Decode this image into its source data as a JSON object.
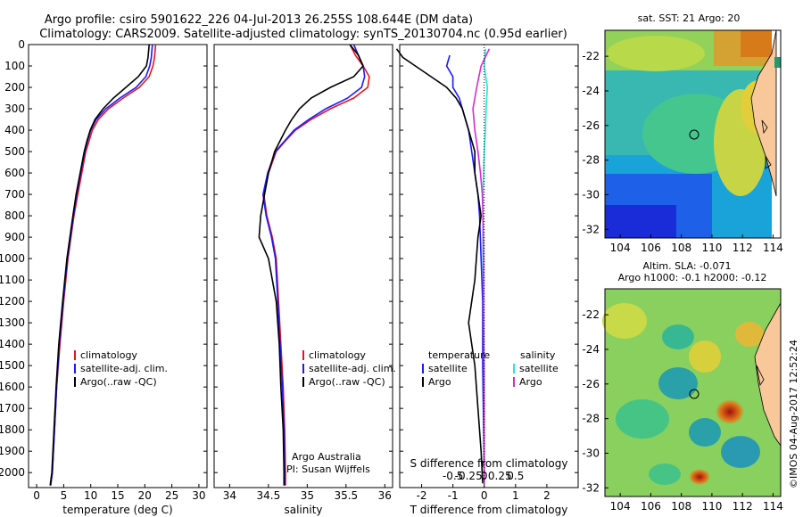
{
  "header": {
    "title_line1": "Argo profile: csiro 5901622_226 04-Jul-2013 26.255S 108.644E (DM data)",
    "title_line2": "Climatology: CARS2009. Satellite-adjusted climatology: synTS_20130704.nc (0.95d earlier)"
  },
  "depth_axis": {
    "ticks": [
      0,
      100,
      200,
      300,
      400,
      500,
      600,
      700,
      800,
      900,
      1000,
      1100,
      1200,
      1300,
      1400,
      1500,
      1600,
      1700,
      1800,
      1900,
      2000
    ],
    "min": 0,
    "max": 2070
  },
  "colors": {
    "climatology": "#e8141c",
    "satellite": "#1a1aff",
    "argo": "#000000",
    "sat_salinity": "#22e5e5",
    "argo_salinity": "#d62ad6"
  },
  "chart_data": [
    {
      "type": "line",
      "xlabel": "temperature (deg C)",
      "xticks": [
        0,
        5,
        10,
        15,
        20,
        25,
        30
      ],
      "xlim": [
        -1.5,
        31.5
      ],
      "ylim": [
        2070,
        0
      ],
      "legend": [
        "climatology",
        "satellite-adj. clim.",
        "Argo(..raw -QC)"
      ],
      "series": [
        {
          "name": "climatology",
          "x": [
            22,
            21.8,
            21.5,
            20.8,
            19,
            16,
            13.3,
            11.4,
            10.3,
            9.7,
            9.1,
            7.6,
            6.9,
            5.8,
            5,
            4.3,
            3.7,
            3.3,
            2.9,
            2.6
          ],
          "y": [
            0,
            60,
            100,
            150,
            200,
            250,
            300,
            350,
            400,
            450,
            500,
            700,
            800,
            1000,
            1200,
            1400,
            1600,
            1800,
            2000,
            2060
          ]
        },
        {
          "name": "satellite-adj. clim.",
          "x": [
            21.4,
            21.2,
            20.9,
            20.2,
            18.4,
            15.4,
            12.8,
            11,
            10,
            9.4,
            8.9,
            7.4,
            6.8,
            5.7,
            4.9,
            4.2,
            3.7,
            3.3,
            2.9,
            2.6
          ],
          "y": [
            0,
            60,
            100,
            150,
            200,
            250,
            300,
            350,
            400,
            450,
            500,
            700,
            800,
            1000,
            1200,
            1400,
            1600,
            1800,
            2000,
            2060
          ]
        },
        {
          "name": "Argo(..raw -QC)",
          "x": [
            20.8,
            20.6,
            20.3,
            18.8,
            16.5,
            14.2,
            12.3,
            10.8,
            9.9,
            9.3,
            8.8,
            7.3,
            6.7,
            5.6,
            4.8,
            4.1,
            3.6,
            3.2,
            2.8,
            2.5
          ],
          "y": [
            0,
            60,
            100,
            150,
            200,
            250,
            300,
            350,
            400,
            450,
            500,
            700,
            800,
            1000,
            1200,
            1400,
            1600,
            1800,
            2000,
            2060
          ]
        }
      ],
      "annotations": []
    },
    {
      "type": "line",
      "xlabel": "salinity",
      "xticks": [
        34,
        34.5,
        35,
        35.5,
        36
      ],
      "xlim": [
        33.8,
        36.1
      ],
      "ylim": [
        2070,
        0
      ],
      "legend": [
        "climatology",
        "satellite-adj. clim.",
        "Argo(..raw -QC)"
      ],
      "series": [
        {
          "name": "climatology",
          "x": [
            35.55,
            35.62,
            35.72,
            35.8,
            35.78,
            35.6,
            35.3,
            35.05,
            34.85,
            34.72,
            34.6,
            34.5,
            34.44,
            34.48,
            34.55,
            34.6,
            34.63,
            34.66,
            34.69,
            34.71,
            34.72,
            34.72
          ],
          "y": [
            0,
            50,
            100,
            150,
            200,
            250,
            300,
            350,
            400,
            450,
            500,
            600,
            700,
            800,
            900,
            1000,
            1200,
            1400,
            1600,
            1800,
            2000,
            2060
          ]
        },
        {
          "name": "satellite-adj. clim.",
          "x": [
            35.6,
            35.66,
            35.72,
            35.74,
            35.7,
            35.52,
            35.24,
            35.02,
            34.83,
            34.71,
            34.59,
            34.49,
            34.43,
            34.47,
            34.54,
            34.59,
            34.62,
            34.65,
            34.68,
            34.7,
            34.71,
            34.71
          ],
          "y": [
            0,
            50,
            100,
            150,
            200,
            250,
            300,
            350,
            400,
            450,
            500,
            600,
            700,
            800,
            900,
            1000,
            1200,
            1400,
            1600,
            1800,
            2000,
            2060
          ]
        },
        {
          "name": "Argo(..raw -QC)",
          "x": [
            35.55,
            35.66,
            35.72,
            35.6,
            35.3,
            35.05,
            34.9,
            34.8,
            34.72,
            34.65,
            34.58,
            34.5,
            34.45,
            34.4,
            34.38,
            34.5,
            34.6,
            34.64,
            34.66,
            34.69,
            34.7,
            34.7
          ],
          "y": [
            0,
            50,
            100,
            150,
            200,
            250,
            300,
            350,
            400,
            450,
            500,
            600,
            700,
            800,
            900,
            1000,
            1200,
            1400,
            1600,
            1800,
            2000,
            2060
          ]
        }
      ],
      "annotations": [
        "Argo Australia",
        "PI: Susan Wijffels"
      ]
    },
    {
      "type": "line",
      "xlabel": "T difference from climatology",
      "xlabel_top": "S difference from climatology",
      "xticks": [
        -2,
        -1,
        0,
        1,
        2
      ],
      "xtick_labels": [
        "-2",
        "-1",
        "0",
        "1",
        "2"
      ],
      "xticks_top": [
        -0.5,
        -0.25,
        0,
        0.25,
        0.5
      ],
      "xtick_labels_top": [
        "-0.5",
        "-0.25",
        "0",
        "0.25",
        "0.5"
      ],
      "xlim": [
        -2.7,
        3.0
      ],
      "ylim": [
        2070,
        0
      ],
      "legend_groups": [
        {
          "title": "temperature",
          "items": [
            "satellite",
            "Argo"
          ]
        },
        {
          "title": "salinity",
          "items": [
            "satellite",
            "Argo"
          ]
        }
      ],
      "series": [
        {
          "name": "temperature satellite",
          "unit": "T",
          "x": [
            -1.1,
            -1.2,
            -1.0,
            -1.0,
            -0.8,
            -0.7,
            -0.5,
            -0.4,
            -0.3,
            -0.2,
            -0.15,
            -0.1,
            -0.05,
            -0.05,
            0
          ],
          "y": [
            50,
            100,
            150,
            200,
            250,
            300,
            400,
            500,
            600,
            700,
            800,
            1000,
            1200,
            1500,
            2000
          ]
        },
        {
          "name": "temperature Argo",
          "x": [
            -2.8,
            -2.6,
            -2.2,
            -1.7,
            -1.2,
            -0.9,
            -0.7,
            -0.5,
            -0.3,
            -0.3,
            -0.2,
            -0.1,
            -0.2,
            -0.3,
            -0.5,
            -0.3,
            -0.2,
            -0.1,
            -0.05
          ],
          "y": [
            20,
            60,
            100,
            150,
            200,
            250,
            300,
            400,
            500,
            600,
            700,
            800,
            900,
            1100,
            1300,
            1500,
            1700,
            1900,
            2050
          ],
          "unit": "T"
        },
        {
          "name": "salinity satellite",
          "x": [
            0.02,
            0.0,
            0.05,
            0.03,
            0.02,
            0.0,
            -0.01,
            -0.02,
            -0.02,
            -0.02,
            -0.01,
            0,
            0,
            0
          ],
          "y": [
            20,
            100,
            200,
            300,
            400,
            500,
            600,
            700,
            800,
            1000,
            1200,
            1500,
            1800,
            2050
          ],
          "unit": "S"
        },
        {
          "name": "salinity Argo",
          "x": [
            0.08,
            -0.05,
            -0.12,
            -0.18,
            -0.15,
            -0.1,
            -0.06,
            -0.03,
            -0.02,
            -0.01,
            -0.01,
            0,
            0
          ],
          "y": [
            20,
            100,
            200,
            300,
            400,
            500,
            600,
            700,
            800,
            1000,
            1300,
            1700,
            2050
          ],
          "unit": "S"
        }
      ]
    }
  ],
  "maps": [
    {
      "title": "sat. SST: 21 Argo: 20",
      "xticks": [
        "104",
        "106",
        "108",
        "110",
        "112",
        "114"
      ],
      "yticks": [
        "-22",
        "-24",
        "-26",
        "-28",
        "-30",
        "-32"
      ],
      "xlim": [
        103,
        114.5
      ],
      "ylim": [
        -32.5,
        -20.5
      ],
      "marker": {
        "lon": 108.644,
        "lat": -26.255
      },
      "palette": "jet"
    },
    {
      "title_line1": "Altim. SLA: -0.071",
      "title_line2": "Argo h1000: -0.1 h2000: -0.12",
      "xticks": [
        "104",
        "106",
        "108",
        "110",
        "112",
        "114"
      ],
      "yticks": [
        "-22",
        "-24",
        "-26",
        "-28",
        "-30",
        "-32"
      ],
      "xlim": [
        103,
        114.5
      ],
      "ylim": [
        -32.5,
        -20.5
      ],
      "marker": {
        "lon": 108.644,
        "lat": -26.255
      },
      "palette": "jet"
    }
  ],
  "stamp": "©IMOS 04-Aug-2017 12:52:24"
}
